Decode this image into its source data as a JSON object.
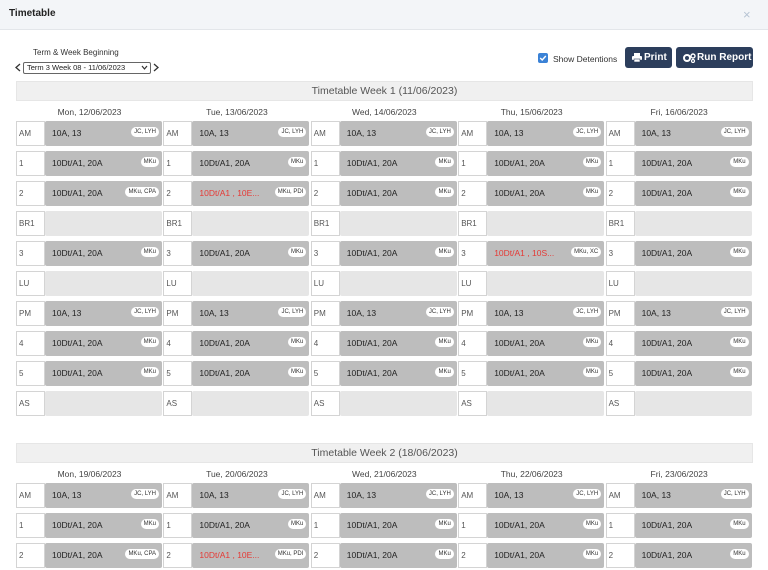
{
  "header": {
    "title": "Timetable",
    "close": "×"
  },
  "controls": {
    "term_label": "Term & Week Beginning",
    "term_select": "Term 3 Week 08 - 11/06/2023",
    "show_detentions": "Show Detentions",
    "print": "Print",
    "run_report": "Run Report"
  },
  "weeks": [
    {
      "title": "Timetable Week 1 (11/06/2023)",
      "days": [
        {
          "date": "Mon, 12/06/2023",
          "periods": [
            {
              "period": "AM",
              "class": "10A, 13",
              "staff": "JC, LYH"
            },
            {
              "period": "1",
              "class": "10Dt/A1, 20A",
              "staff": "MKu"
            },
            {
              "period": "2",
              "class": "10Dt/A1, 20A",
              "staff": "MKu, CPA"
            },
            {
              "period": "BR1"
            },
            {
              "period": "3",
              "class": "10Dt/A1, 20A",
              "staff": "MKu"
            },
            {
              "period": "LU"
            },
            {
              "period": "PM",
              "class": "10A, 13",
              "staff": "JC, LYH"
            },
            {
              "period": "4",
              "class": "10Dt/A1, 20A",
              "staff": "MKu"
            },
            {
              "period": "5",
              "class": "10Dt/A1, 20A",
              "staff": "MKu"
            },
            {
              "period": "AS"
            }
          ]
        },
        {
          "date": "Tue, 13/06/2023",
          "periods": [
            {
              "period": "AM",
              "class": "10A, 13",
              "staff": "JC, LYH"
            },
            {
              "period": "1",
              "class": "10Dt/A1, 20A",
              "staff": "MKu"
            },
            {
              "period": "2",
              "class": "10Dt/A1 , 10E...",
              "staff": "MKu, PDI",
              "text_color": "#e53935"
            },
            {
              "period": "BR1"
            },
            {
              "period": "3",
              "class": "10Dt/A1, 20A",
              "staff": "MKu"
            },
            {
              "period": "LU"
            },
            {
              "period": "PM",
              "class": "10A, 13",
              "staff": "JC, LYH"
            },
            {
              "period": "4",
              "class": "10Dt/A1, 20A",
              "staff": "MKu"
            },
            {
              "period": "5",
              "class": "10Dt/A1, 20A",
              "staff": "MKu"
            },
            {
              "period": "AS"
            }
          ]
        },
        {
          "date": "Wed, 14/06/2023",
          "periods": [
            {
              "period": "AM",
              "class": "10A, 13",
              "staff": "JC, LYH"
            },
            {
              "period": "1",
              "class": "10Dt/A1, 20A",
              "staff": "MKu"
            },
            {
              "period": "2",
              "class": "10Dt/A1, 20A",
              "staff": "MKu"
            },
            {
              "period": "BR1"
            },
            {
              "period": "3",
              "class": "10Dt/A1, 20A",
              "staff": "MKu"
            },
            {
              "period": "LU"
            },
            {
              "period": "PM",
              "class": "10A, 13",
              "staff": "JC, LYH"
            },
            {
              "period": "4",
              "class": "10Dt/A1, 20A",
              "staff": "MKu"
            },
            {
              "period": "5",
              "class": "10Dt/A1, 20A",
              "staff": "MKu"
            },
            {
              "period": "AS"
            }
          ]
        },
        {
          "date": "Thu, 15/06/2023",
          "periods": [
            {
              "period": "AM",
              "class": "10A, 13",
              "staff": "JC, LYH"
            },
            {
              "period": "1",
              "class": "10Dt/A1, 20A",
              "staff": "MKu"
            },
            {
              "period": "2",
              "class": "10Dt/A1, 20A",
              "staff": "MKu"
            },
            {
              "period": "BR1"
            },
            {
              "period": "3",
              "class": "10Dt/A1 , 10S...",
              "staff": "MKu, XC",
              "text_color": "#e53935"
            },
            {
              "period": "LU"
            },
            {
              "period": "PM",
              "class": "10A, 13",
              "staff": "JC, LYH"
            },
            {
              "period": "4",
              "class": "10Dt/A1, 20A",
              "staff": "MKu"
            },
            {
              "period": "5",
              "class": "10Dt/A1, 20A",
              "staff": "MKu"
            },
            {
              "period": "AS"
            }
          ]
        },
        {
          "date": "Fri, 16/06/2023",
          "periods": [
            {
              "period": "AM",
              "class": "10A, 13",
              "staff": "JC, LYH"
            },
            {
              "period": "1",
              "class": "10Dt/A1, 20A",
              "staff": "MKu"
            },
            {
              "period": "2",
              "class": "10Dt/A1, 20A",
              "staff": "MKu"
            },
            {
              "period": "BR1"
            },
            {
              "period": "3",
              "class": "10Dt/A1, 20A",
              "staff": "MKu"
            },
            {
              "period": "LU"
            },
            {
              "period": "PM",
              "class": "10A, 13",
              "staff": "JC, LYH"
            },
            {
              "period": "4",
              "class": "10Dt/A1, 20A",
              "staff": "MKu"
            },
            {
              "period": "5",
              "class": "10Dt/A1, 20A",
              "staff": "MKu"
            },
            {
              "period": "AS"
            }
          ]
        }
      ]
    },
    {
      "title": "Timetable Week 2 (18/06/2023)",
      "days": [
        {
          "date": "Mon, 19/06/2023",
          "periods": [
            {
              "period": "AM",
              "class": "10A, 13",
              "staff": "JC, LYH"
            },
            {
              "period": "1",
              "class": "10Dt/A1, 20A",
              "staff": "MKu"
            },
            {
              "period": "2",
              "class": "10Dt/A1, 20A",
              "staff": "MKu, CPA"
            }
          ]
        },
        {
          "date": "Tue, 20/06/2023",
          "periods": [
            {
              "period": "AM",
              "class": "10A, 13",
              "staff": "JC, LYH"
            },
            {
              "period": "1",
              "class": "10Dt/A1, 20A",
              "staff": "MKu"
            },
            {
              "period": "2",
              "class": "10Dt/A1 , 10E...",
              "staff": "MKu, PDI",
              "text_color": "#e53935"
            }
          ]
        },
        {
          "date": "Wed, 21/06/2023",
          "periods": [
            {
              "period": "AM",
              "class": "10A, 13",
              "staff": "JC, LYH"
            },
            {
              "period": "1",
              "class": "10Dt/A1, 20A",
              "staff": "MKu"
            },
            {
              "period": "2",
              "class": "10Dt/A1, 20A",
              "staff": "MKu"
            }
          ]
        },
        {
          "date": "Thu, 22/06/2023",
          "periods": [
            {
              "period": "AM",
              "class": "10A, 13",
              "staff": "JC, LYH"
            },
            {
              "period": "1",
              "class": "10Dt/A1, 20A",
              "staff": "MKu"
            },
            {
              "period": "2",
              "class": "10Dt/A1, 20A",
              "staff": "MKu"
            }
          ]
        },
        {
          "date": "Fri, 23/06/2023",
          "periods": [
            {
              "period": "AM",
              "class": "10A, 13",
              "staff": "JC, LYH"
            },
            {
              "period": "1",
              "class": "10Dt/A1, 20A",
              "staff": "MKu"
            },
            {
              "period": "2",
              "class": "10Dt/A1, 20A",
              "staff": "MKu"
            }
          ]
        }
      ]
    }
  ]
}
